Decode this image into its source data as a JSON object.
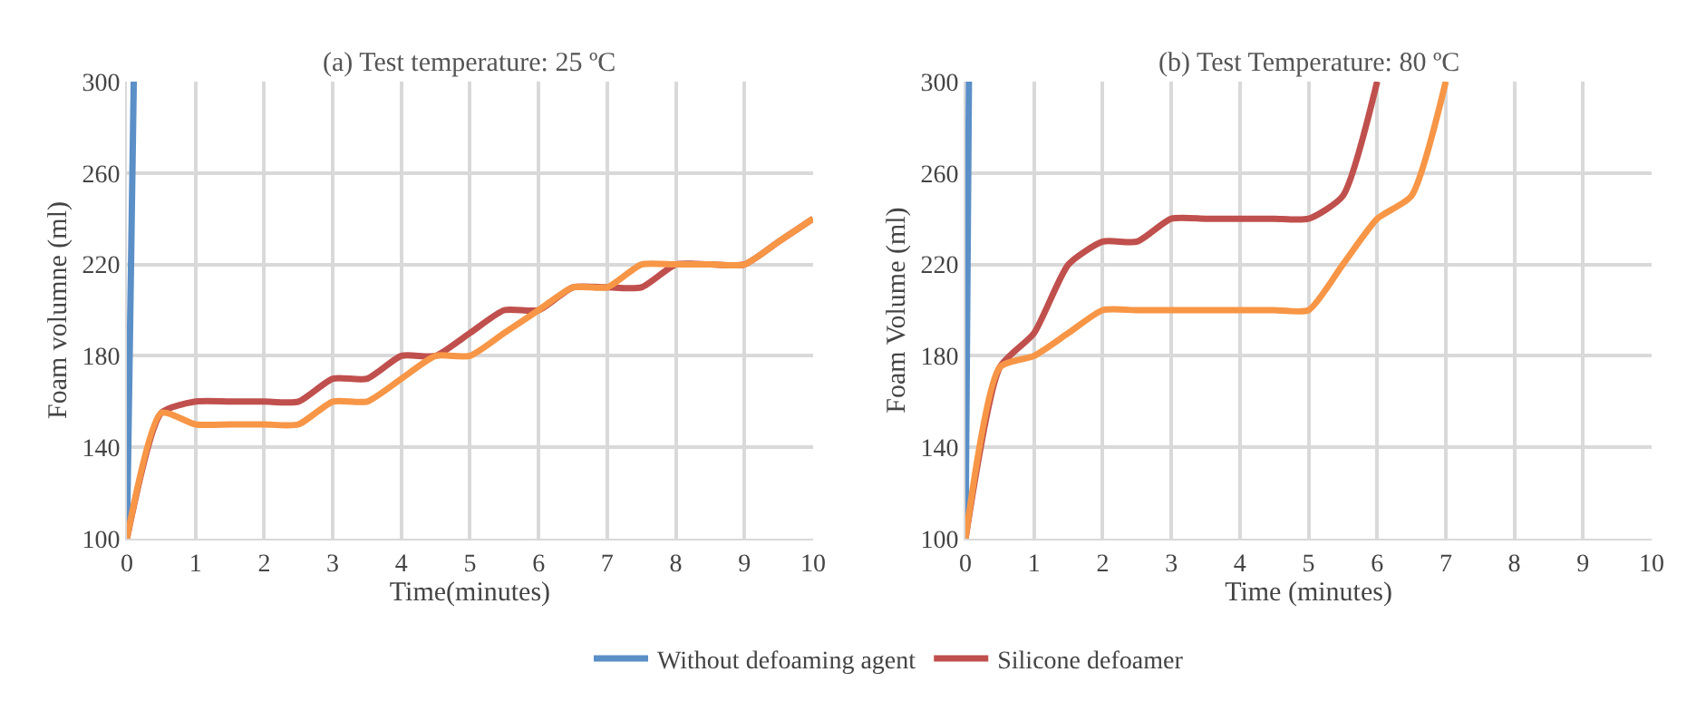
{
  "chart_data": [
    {
      "type": "line",
      "title": "(a) Test temperature: 25 ºC",
      "xlabel": "Time(minutes)",
      "ylabel": "Foam volumne (ml)",
      "xlim": [
        0,
        10
      ],
      "xticks": [
        0,
        1,
        2,
        3,
        4,
        5,
        6,
        7,
        8,
        9,
        10
      ],
      "ylim": [
        100,
        300
      ],
      "yticks": [
        100,
        140,
        180,
        220,
        260,
        300
      ],
      "grid": true,
      "legend": "bottom",
      "series": [
        {
          "name": "Without defoaming agent",
          "color": "#5b8fc7",
          "x": [
            0,
            0.1
          ],
          "values": [
            100,
            300
          ]
        },
        {
          "name": "Silicone defoamer",
          "color": "#c0504d",
          "x": [
            0,
            0.5,
            1,
            1.5,
            2,
            2.5,
            3,
            3.5,
            4,
            4.5,
            5,
            5.5,
            6,
            6.5,
            7,
            7.5,
            8,
            8.5,
            9,
            9.5,
            10
          ],
          "values": [
            100,
            155,
            160,
            160,
            160,
            160,
            170,
            170,
            180,
            180,
            190,
            200,
            200,
            210,
            210,
            210,
            220,
            220,
            220,
            230,
            240
          ]
        },
        {
          "color": "#f79646",
          "x": [
            0,
            0.5,
            1,
            1.5,
            2,
            2.5,
            3,
            3.5,
            4,
            4.5,
            5,
            5.5,
            6,
            6.5,
            7,
            7.5,
            8,
            8.5,
            9,
            9.5,
            10
          ],
          "values": [
            100,
            155,
            150,
            150,
            150,
            150,
            160,
            160,
            170,
            180,
            180,
            190,
            200,
            210,
            210,
            220,
            220,
            220,
            220,
            230,
            240
          ]
        }
      ]
    },
    {
      "type": "line",
      "title": "(b) Test Temperature: 80 ºC",
      "xlabel": "Time (minutes)",
      "ylabel": "Foam Volume (ml)",
      "xlim": [
        0,
        10
      ],
      "xticks": [
        0,
        1,
        2,
        3,
        4,
        5,
        6,
        7,
        8,
        9,
        10
      ],
      "ylim": [
        100,
        300
      ],
      "yticks": [
        100,
        140,
        180,
        220,
        260,
        300
      ],
      "grid": true,
      "legend": "bottom",
      "series": [
        {
          "name": "Without defoaming agent",
          "color": "#5b8fc7",
          "x": [
            0,
            0.05
          ],
          "values": [
            100,
            300
          ]
        },
        {
          "name": "Silicone defoamer",
          "color": "#c0504d",
          "x": [
            0,
            0.5,
            1,
            1.5,
            2,
            2.5,
            3,
            3.5,
            4,
            4.5,
            5,
            5.5,
            6
          ],
          "values": [
            100,
            175,
            190,
            220,
            230,
            230,
            240,
            240,
            240,
            240,
            240,
            250,
            300
          ]
        },
        {
          "color": "#f79646",
          "x": [
            0,
            0.5,
            1,
            1.5,
            2,
            2.5,
            3,
            3.5,
            4,
            4.5,
            5,
            5.5,
            6,
            6.5,
            7
          ],
          "values": [
            100,
            175,
            180,
            190,
            200,
            200,
            200,
            200,
            200,
            200,
            200,
            220,
            240,
            250,
            300
          ]
        }
      ]
    }
  ]
}
